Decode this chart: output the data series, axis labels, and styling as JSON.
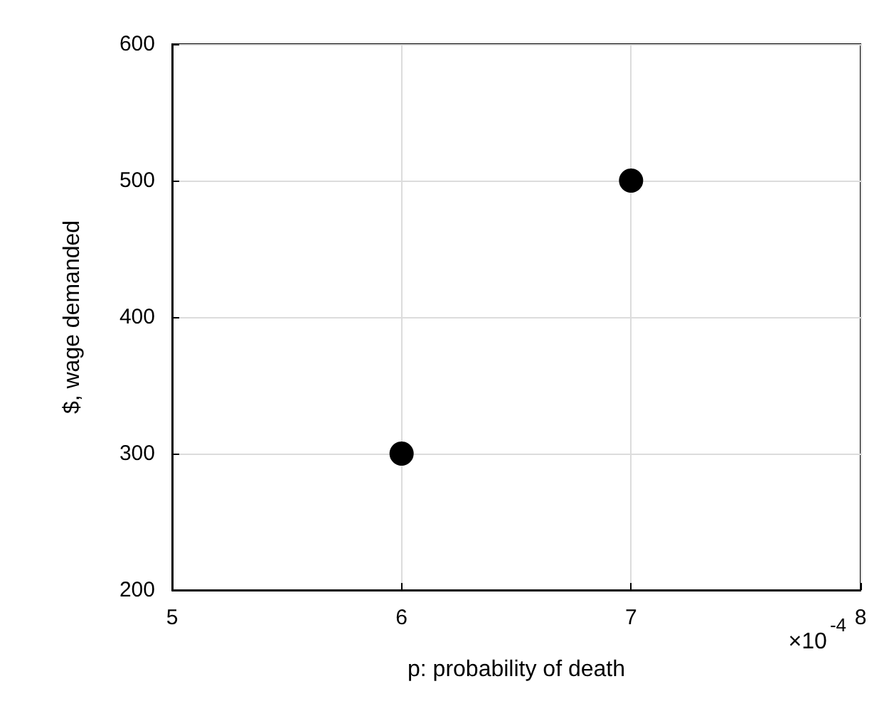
{
  "chart_data": {
    "type": "scatter",
    "xlabel": "p: probability of death",
    "ylabel": "$, wage demanded",
    "x": [
      6,
      7
    ],
    "series": [
      {
        "color": "#000000",
        "values": [
          300,
          500
        ]
      }
    ],
    "xlim": [
      5,
      8
    ],
    "xticks": [
      5,
      6,
      7,
      8
    ],
    "ylim": [
      200,
      600
    ],
    "yticks": [
      200,
      300,
      400,
      500,
      600
    ],
    "grid": true,
    "marker": "circle",
    "annotations": [
      "×10$^{-4}$"
    ]
  }
}
